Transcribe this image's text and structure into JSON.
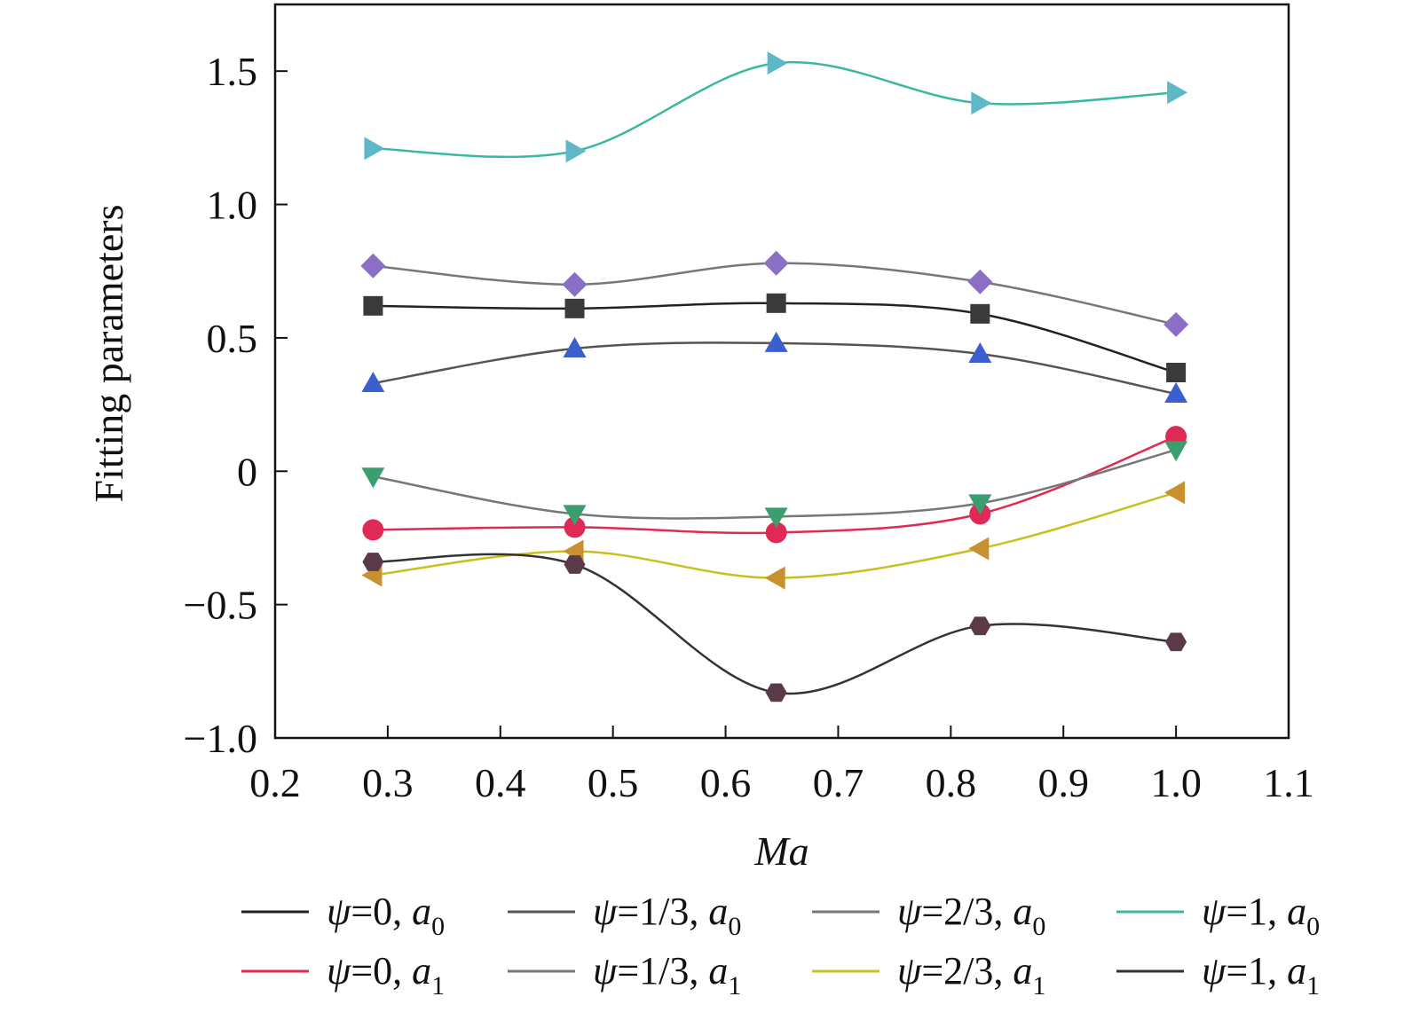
{
  "chart_data": {
    "type": "line",
    "xlabel": "Ma",
    "ylabel": "Fitting parameters",
    "xlim": [
      0.2,
      1.1
    ],
    "ylim": [
      -1.0,
      1.75
    ],
    "x_ticks": [
      "0.2",
      "0.3",
      "0.4",
      "0.5",
      "0.6",
      "0.7",
      "0.8",
      "0.9",
      "1.0",
      "1.1"
    ],
    "y_ticks": [
      "−1.0",
      "−0.5",
      "0",
      "0.5",
      "1.0",
      "1.5"
    ],
    "x": [
      0.287,
      0.466,
      0.645,
      0.826,
      1.0
    ],
    "grid": false,
    "legend_position": "bottom",
    "series": [
      {
        "name": "ψ=0, a0",
        "psi": "0",
        "param": "a",
        "sub": "0",
        "marker": "square",
        "color": "#3a3a3a",
        "line_color": "#222222",
        "values": [
          0.62,
          0.61,
          0.63,
          0.59,
          0.37
        ]
      },
      {
        "name": "ψ=1/3, a0",
        "psi": "1/3",
        "param": "a",
        "sub": "0",
        "marker": "triangle-up",
        "color": "#3b5fcf",
        "line_color": "#555555",
        "values": [
          0.33,
          0.46,
          0.48,
          0.44,
          0.29
        ]
      },
      {
        "name": "ψ=2/3, a0",
        "psi": "2/3",
        "param": "a",
        "sub": "0",
        "marker": "diamond",
        "color": "#8a6fc4",
        "line_color": "#777777",
        "values": [
          0.77,
          0.7,
          0.78,
          0.71,
          0.55
        ]
      },
      {
        "name": "ψ=1, a0",
        "psi": "1",
        "param": "a",
        "sub": "0",
        "marker": "triangle-right",
        "color": "#5fb8c8",
        "line_color": "#3bb8a0",
        "values": [
          1.21,
          1.2,
          1.53,
          1.38,
          1.42
        ]
      },
      {
        "name": "ψ=0, a1",
        "psi": "0",
        "param": "a",
        "sub": "1",
        "marker": "circle",
        "color": "#e02a55",
        "line_color": "#e02a55",
        "values": [
          -0.22,
          -0.21,
          -0.23,
          -0.16,
          0.13
        ]
      },
      {
        "name": "ψ=1/3, a1",
        "psi": "1/3",
        "param": "a",
        "sub": "1",
        "marker": "triangle-down",
        "color": "#3a9e6e",
        "line_color": "#777777",
        "values": [
          -0.02,
          -0.16,
          -0.17,
          -0.12,
          0.08
        ]
      },
      {
        "name": "ψ=2/3, a1",
        "psi": "2/3",
        "param": "a",
        "sub": "1",
        "marker": "triangle-left",
        "color": "#c8902e",
        "line_color": "#c8c020",
        "values": [
          -0.39,
          -0.3,
          -0.4,
          -0.29,
          -0.08
        ]
      },
      {
        "name": "ψ=1, a1",
        "psi": "1",
        "param": "a",
        "sub": "1",
        "marker": "hexagon",
        "color": "#5a3a48",
        "line_color": "#333333",
        "values": [
          -0.34,
          -0.35,
          -0.83,
          -0.58,
          -0.64
        ]
      }
    ]
  }
}
